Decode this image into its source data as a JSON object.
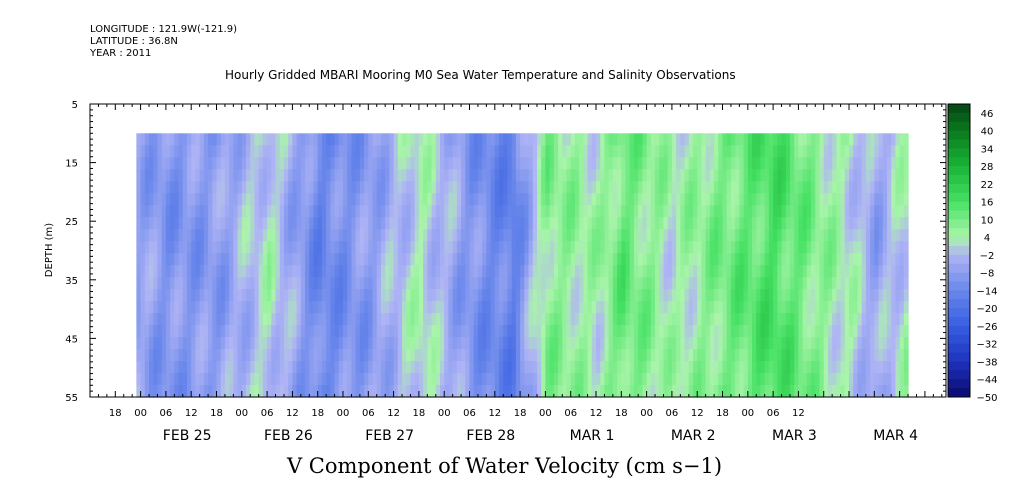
{
  "header": {
    "longitude": "LONGITUDE : 121.9W(-121.9)",
    "latitude": "LATITUDE : 36.8N",
    "year": "YEAR : 2011"
  },
  "chart_data": {
    "type": "heatmap",
    "title": "Hourly Gridded MBARI Mooring M0 Sea Water Temperature and Salinity Observations",
    "xlabel": "V Component of Water Velocity (cm s−1)",
    "ylabel": "DEPTH (m)",
    "y_ticks": [
      "5",
      "15",
      "25",
      "35",
      "45",
      "55"
    ],
    "y_range": [
      5,
      55
    ],
    "y_reversed": true,
    "x_range": [
      "2011-02-24T12:00",
      "2011-03-04T23:00"
    ],
    "x_hour_labels": [
      "18",
      "00",
      "06",
      "12",
      "18",
      "00",
      "06",
      "12",
      "18",
      "00",
      "06",
      "12",
      "18",
      "00",
      "06",
      "12",
      "18",
      "00",
      "06",
      "12",
      "18",
      "00",
      "06",
      "12",
      "18",
      "00",
      "06",
      "12"
    ],
    "x_date_labels": [
      "FEB 25",
      "FEB 26",
      "FEB 27",
      "FEB 28",
      "MAR  1",
      "MAR  2",
      "MAR  3",
      "MAR  4"
    ],
    "colorbar": {
      "labels": [
        "46",
        "40",
        "34",
        "28",
        "22",
        "16",
        "10",
        "4",
        "−2",
        "−8",
        "−14",
        "−20",
        "−26",
        "−32",
        "−38",
        "−44",
        "−50"
      ],
      "min": -50,
      "max": 49,
      "step": 3
    },
    "data_depth_range": [
      10,
      55
    ],
    "field_description": "V velocity by depth over time; mostly negative (blue) Feb 25–Feb 28, mostly positive (green) Mar 1–Mar 4",
    "time_profile": [
      {
        "t": "2011-02-24T23:00",
        "v": -6
      },
      {
        "t": "2011-02-25T06:00",
        "v": -10
      },
      {
        "t": "2011-02-25T18:00",
        "v": -8
      },
      {
        "t": "2011-02-26T06:00",
        "v": 2
      },
      {
        "t": "2011-02-26T18:00",
        "v": -14
      },
      {
        "t": "2011-02-27T06:00",
        "v": -8
      },
      {
        "t": "2011-02-27T18:00",
        "v": 3
      },
      {
        "t": "2011-02-28T06:00",
        "v": -10
      },
      {
        "t": "2011-02-28T16:00",
        "v": -16
      },
      {
        "t": "2011-03-01T00:00",
        "v": 8
      },
      {
        "t": "2011-03-01T12:00",
        "v": 4
      },
      {
        "t": "2011-03-01T18:00",
        "v": 12
      },
      {
        "t": "2011-03-02T06:00",
        "v": 3
      },
      {
        "t": "2011-03-02T18:00",
        "v": 10
      },
      {
        "t": "2011-03-03T06:00",
        "v": 16
      },
      {
        "t": "2011-03-03T18:00",
        "v": 6
      },
      {
        "t": "2011-03-04T00:00",
        "v": 2
      },
      {
        "t": "2011-03-04T06:00",
        "v": -6
      },
      {
        "t": "2011-03-04T14:00",
        "v": 4
      }
    ]
  }
}
